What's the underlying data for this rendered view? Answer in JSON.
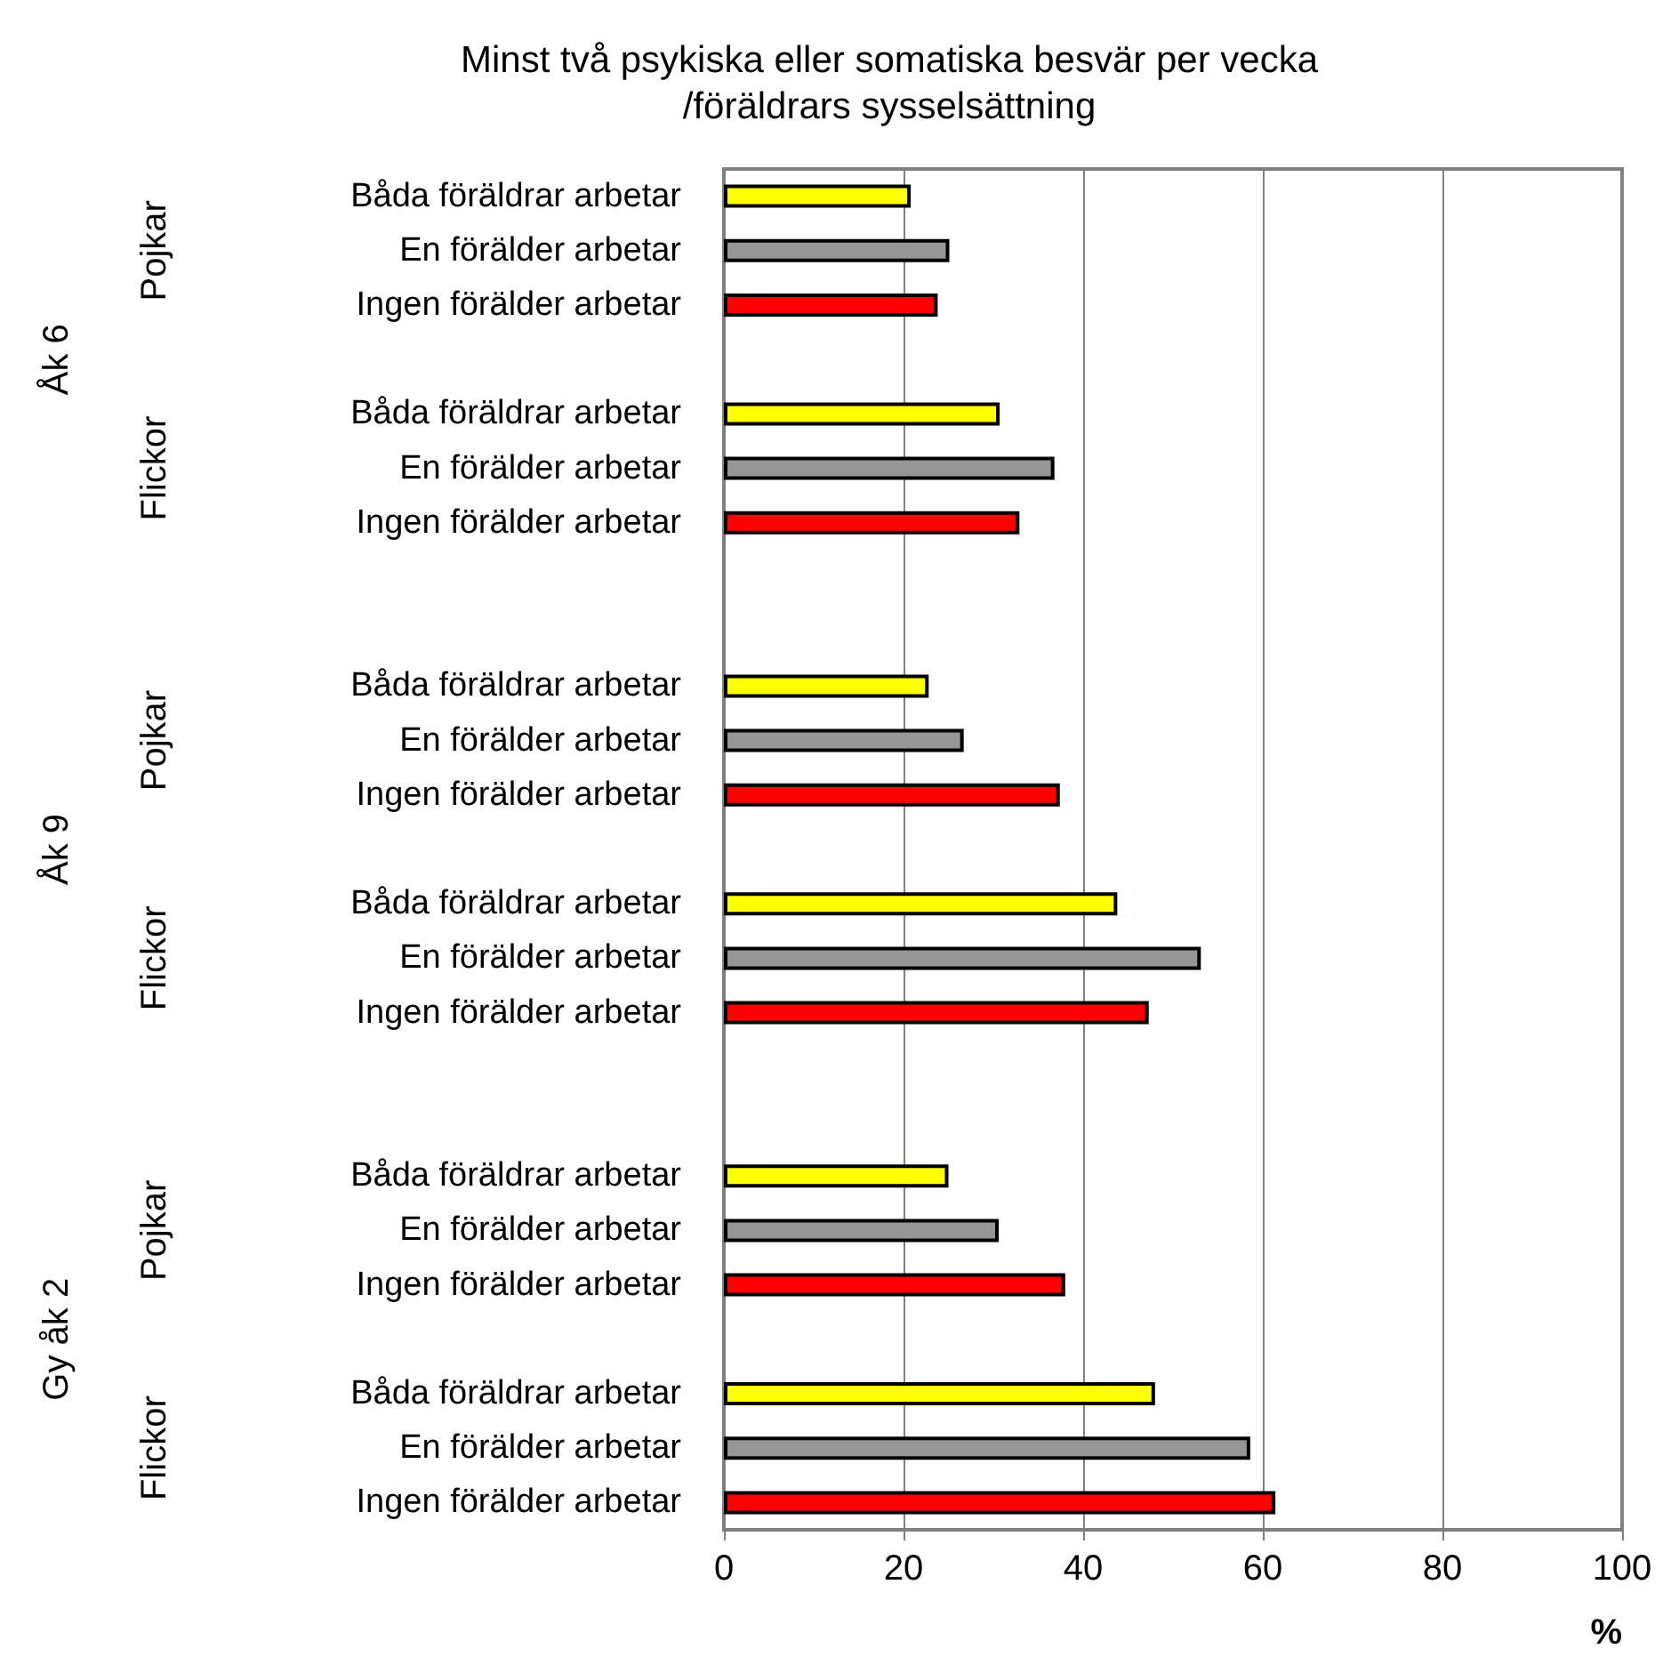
{
  "chart_data": {
    "type": "bar",
    "orientation": "horizontal",
    "title": "Minst två psykiska eller somatiska besvär per vecka\n/föräldrars sysselsättning",
    "xlabel": "%",
    "categories": [
      "Båda föräldrar arbetar",
      "En förälder arbetar",
      "Ingen förälder arbetar",
      null,
      "Båda föräldrar arbetar",
      "En förälder arbetar",
      "Ingen förälder arbetar",
      null,
      null,
      "Båda föräldrar arbetar",
      "En förälder arbetar",
      "Ingen förälder arbetar",
      null,
      "Båda föräldrar arbetar",
      "En förälder arbetar",
      "Ingen förälder arbetar",
      null,
      null,
      "Båda föräldrar arbetar",
      "En förälder arbetar",
      "Ingen förälder arbetar",
      null,
      "Båda föräldrar arbetar",
      "En förälder arbetar",
      "Ingen förälder arbetar"
    ],
    "values": [
      20.8,
      25.1,
      23.8,
      null,
      30.7,
      36.8,
      32.9,
      null,
      null,
      22.8,
      26.7,
      37.4,
      null,
      43.8,
      53.1,
      47.3,
      null,
      null,
      25.0,
      30.6,
      38.0,
      null,
      48.0,
      58.6,
      61.4
    ],
    "colors": [
      "#ffff00",
      "#969696",
      "#ff0000",
      null,
      "#ffff00",
      "#969696",
      "#ff0000",
      null,
      null,
      "#ffff00",
      "#969696",
      "#ff0000",
      null,
      "#ffff00",
      "#969696",
      "#ff0000",
      null,
      null,
      "#ffff00",
      "#969696",
      "#ff0000",
      null,
      "#ffff00",
      "#969696",
      "#ff0000"
    ],
    "annotations": [
      "Pojkar",
      "Flickor",
      "Pojkar",
      "Flickor",
      "Pojkar",
      "Flickor",
      "Åk 6",
      "Åk 9",
      "Gy åk 2"
    ],
    "xlim": [
      0,
      100
    ],
    "xticks": [
      0,
      20,
      40,
      60,
      80,
      100
    ],
    "grid": "x"
  }
}
